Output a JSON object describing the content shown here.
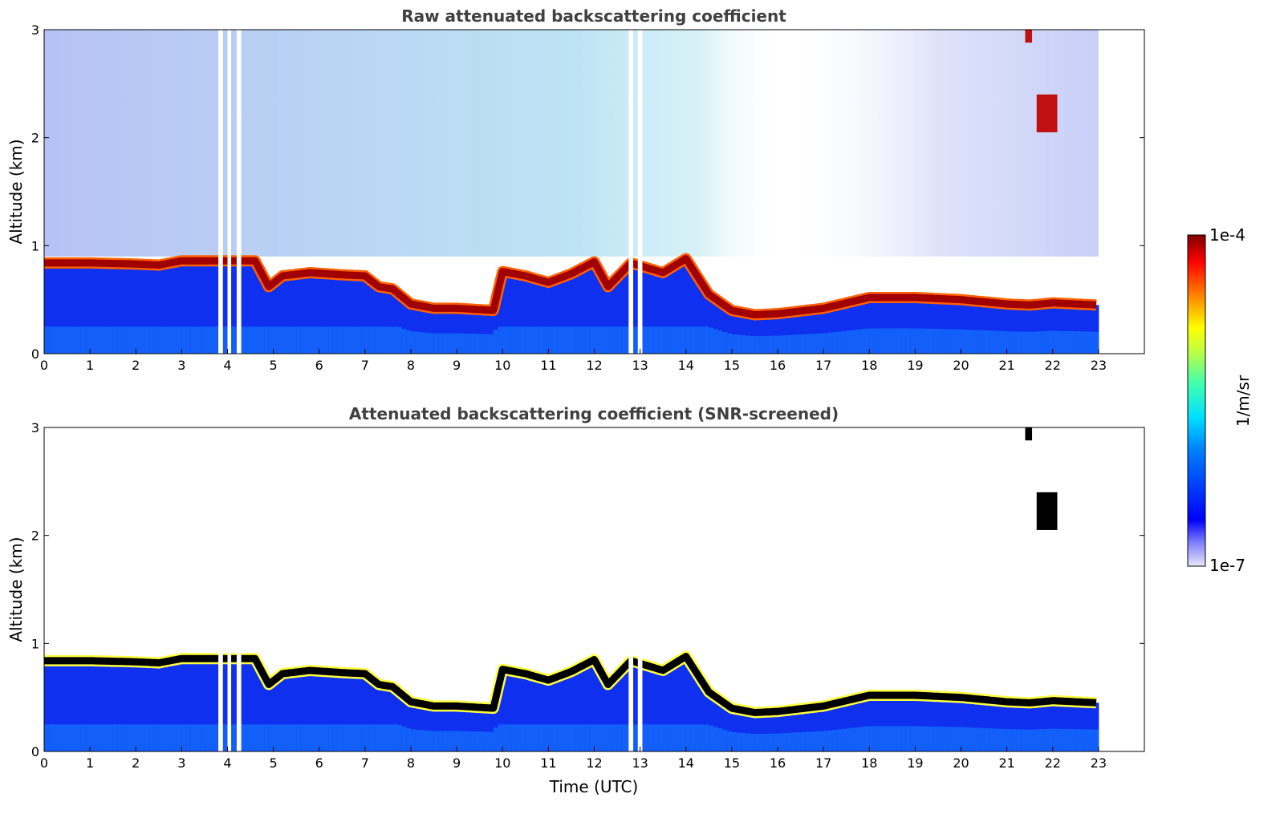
{
  "chart_data": [
    {
      "type": "heatmap",
      "title": "Raw attenuated backscattering coefficient",
      "xlabel": "",
      "ylabel": "Altitude (km)",
      "xlim": [
        0,
        24
      ],
      "ylim": [
        0,
        3
      ],
      "xticks": [
        "0",
        "1",
        "2",
        "3",
        "4",
        "5",
        "6",
        "7",
        "8",
        "9",
        "10",
        "11",
        "12",
        "13",
        "14",
        "15",
        "16",
        "17",
        "18",
        "19",
        "20",
        "21",
        "22",
        "23"
      ],
      "yticks": [
        "0",
        "1",
        "2",
        "3"
      ],
      "data_end_hour": 23,
      "boundary_layer_top_km": [
        [
          0,
          0.84
        ],
        [
          1,
          0.84
        ],
        [
          2,
          0.83
        ],
        [
          2.5,
          0.82
        ],
        [
          3,
          0.86
        ],
        [
          3.8,
          0.86
        ],
        [
          4.6,
          0.86
        ],
        [
          4.9,
          0.62
        ],
        [
          5.2,
          0.72
        ],
        [
          5.8,
          0.75
        ],
        [
          6.5,
          0.73
        ],
        [
          7.0,
          0.72
        ],
        [
          7.3,
          0.62
        ],
        [
          7.6,
          0.6
        ],
        [
          8.0,
          0.46
        ],
        [
          8.5,
          0.42
        ],
        [
          9.0,
          0.42
        ],
        [
          9.8,
          0.4
        ],
        [
          10.0,
          0.76
        ],
        [
          10.5,
          0.72
        ],
        [
          11.0,
          0.66
        ],
        [
          11.5,
          0.74
        ],
        [
          12.0,
          0.85
        ],
        [
          12.3,
          0.62
        ],
        [
          12.8,
          0.84
        ],
        [
          13.5,
          0.75
        ],
        [
          14.0,
          0.88
        ],
        [
          14.5,
          0.55
        ],
        [
          15.0,
          0.4
        ],
        [
          15.5,
          0.36
        ],
        [
          16.0,
          0.37
        ],
        [
          17.0,
          0.42
        ],
        [
          18.0,
          0.52
        ],
        [
          19.0,
          0.52
        ],
        [
          20.0,
          0.5
        ],
        [
          21.0,
          0.46
        ],
        [
          21.5,
          0.45
        ],
        [
          22.0,
          0.47
        ],
        [
          23.0,
          0.45
        ]
      ],
      "colorbar": {
        "min_label": "1e-7",
        "max_label": "1e-4",
        "label": "1/m/sr",
        "scale": "log",
        "colormap": "jet"
      }
    },
    {
      "type": "heatmap",
      "title": "Attenuated backscattering coefficient (SNR-screened)",
      "xlabel": "Time (UTC)",
      "ylabel": "Altitude (km)",
      "xlim": [
        0,
        24
      ],
      "ylim": [
        0,
        3
      ],
      "xticks": [
        "0",
        "1",
        "2",
        "3",
        "4",
        "5",
        "6",
        "7",
        "8",
        "9",
        "10",
        "11",
        "12",
        "13",
        "14",
        "15",
        "16",
        "17",
        "18",
        "19",
        "20",
        "21",
        "22",
        "23"
      ],
      "yticks": [
        "0",
        "1",
        "2",
        "3"
      ],
      "data_end_hour": 23,
      "saturated_color": "#000000",
      "colorbar": {
        "min_label": "1e-7",
        "max_label": "1e-4",
        "label": "1/m/sr",
        "scale": "log",
        "colormap": "jet"
      }
    }
  ]
}
